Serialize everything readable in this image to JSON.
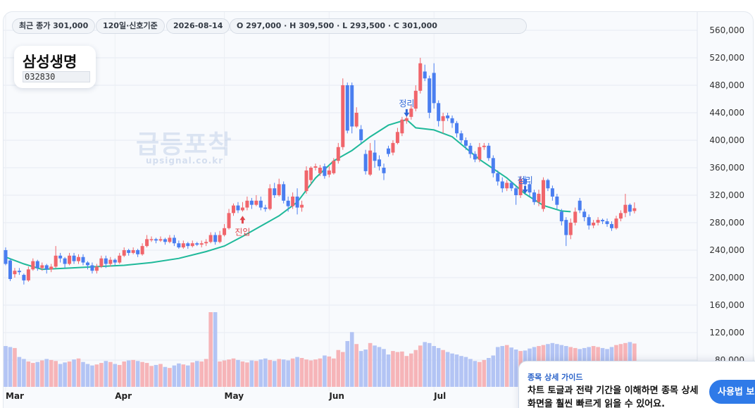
{
  "header_chips": {
    "last_close": "최근 종가 301,000",
    "period": "120일·신호기준",
    "date": "2026-08-14",
    "ohlc": "O 297,000 · H 309,500 · L 293,500 · C 301,000"
  },
  "stock": {
    "name": "삼성생명",
    "code": "032830"
  },
  "watermark": {
    "title": "급등포착",
    "subtitle": "upsignal.co.kr"
  },
  "guide": {
    "title": "종목 상세 가이드",
    "body": "차트 토글과 전략 기간을 이해하면 종목 상세 화면을 훨씬 빠르게 읽을 수 있어요.",
    "button": "사용법 보기"
  },
  "colors": {
    "up": "#f0656b",
    "down": "#4a7ef0",
    "ma": "#1fb99a",
    "vol_up": "#f6b4b8",
    "vol_down": "#b3c4f4"
  },
  "chart_data": {
    "type": "candlestick",
    "x_ticks": [
      "Mar",
      "Apr",
      "May",
      "Jun",
      "Jul"
    ],
    "y_ticks": [
      "80,000",
      "120,000",
      "160,000",
      "200,000",
      "240,000",
      "280,000",
      "320,000",
      "360,000",
      "400,000",
      "440,000",
      "480,000",
      "520,000",
      "560,000"
    ],
    "ylim": [
      70000,
      570000
    ],
    "annotations": [
      {
        "label": "진입",
        "day": 52,
        "price": 290000,
        "kind": "entry"
      },
      {
        "label": "정리",
        "day": 88,
        "price": 434000,
        "kind": "exit"
      },
      {
        "label": "정리",
        "day": 114,
        "price": 322000,
        "kind": "exit"
      }
    ],
    "ma_line": [
      [
        0,
        230000
      ],
      [
        4,
        220000
      ],
      [
        8,
        212000
      ],
      [
        14,
        214000
      ],
      [
        20,
        216000
      ],
      [
        26,
        218000
      ],
      [
        32,
        222000
      ],
      [
        38,
        228000
      ],
      [
        44,
        238000
      ],
      [
        48,
        246000
      ],
      [
        52,
        260000
      ],
      [
        56,
        275000
      ],
      [
        60,
        290000
      ],
      [
        64,
        310000
      ],
      [
        68,
        345000
      ],
      [
        72,
        370000
      ],
      [
        76,
        385000
      ],
      [
        80,
        405000
      ],
      [
        84,
        422000
      ],
      [
        88,
        430000
      ],
      [
        90,
        418000
      ],
      [
        94,
        415000
      ],
      [
        98,
        405000
      ],
      [
        104,
        372000
      ],
      [
        110,
        345000
      ],
      [
        114,
        322000
      ],
      [
        118,
        305000
      ],
      [
        122,
        297000
      ],
      [
        124,
        296000
      ]
    ],
    "candles": [
      [
        240000,
        220000,
        244000,
        218000
      ],
      [
        225000,
        198000,
        228000,
        195000
      ],
      [
        205000,
        210000,
        214000,
        200000
      ],
      [
        210000,
        208000,
        214000,
        204000
      ],
      [
        204000,
        196000,
        206000,
        190000
      ],
      [
        196000,
        212000,
        216000,
        194000
      ],
      [
        212000,
        224000,
        228000,
        210000
      ],
      [
        224000,
        214000,
        226000,
        210000
      ],
      [
        214000,
        218000,
        222000,
        210000
      ],
      [
        218000,
        212000,
        220000,
        206000
      ],
      [
        212000,
        216000,
        220000,
        208000
      ],
      [
        216000,
        232000,
        246000,
        214000
      ],
      [
        232000,
        228000,
        236000,
        222000
      ],
      [
        228000,
        220000,
        230000,
        214000
      ],
      [
        220000,
        232000,
        236000,
        218000
      ],
      [
        232000,
        224000,
        236000,
        220000
      ],
      [
        224000,
        230000,
        234000,
        220000
      ],
      [
        230000,
        222000,
        234000,
        218000
      ],
      [
        222000,
        218000,
        224000,
        212000
      ],
      [
        218000,
        210000,
        222000,
        206000
      ],
      [
        210000,
        216000,
        220000,
        206000
      ],
      [
        216000,
        228000,
        232000,
        214000
      ],
      [
        228000,
        220000,
        232000,
        214000
      ],
      [
        220000,
        226000,
        230000,
        216000
      ],
      [
        226000,
        222000,
        228000,
        218000
      ],
      [
        222000,
        232000,
        236000,
        220000
      ],
      [
        232000,
        240000,
        244000,
        230000
      ],
      [
        240000,
        236000,
        242000,
        232000
      ],
      [
        236000,
        240000,
        244000,
        234000
      ],
      [
        240000,
        234000,
        242000,
        230000
      ],
      [
        234000,
        246000,
        250000,
        232000
      ],
      [
        246000,
        256000,
        262000,
        244000
      ],
      [
        256000,
        256000,
        260000,
        252000
      ],
      [
        256000,
        254000,
        258000,
        250000
      ],
      [
        254000,
        256000,
        260000,
        252000
      ],
      [
        256000,
        252000,
        258000,
        248000
      ],
      [
        252000,
        258000,
        262000,
        250000
      ],
      [
        258000,
        250000,
        262000,
        246000
      ],
      [
        250000,
        244000,
        254000,
        242000
      ],
      [
        244000,
        250000,
        254000,
        242000
      ],
      [
        250000,
        246000,
        252000,
        242000
      ],
      [
        246000,
        250000,
        254000,
        244000
      ],
      [
        250000,
        248000,
        252000,
        246000
      ],
      [
        248000,
        250000,
        254000,
        244000
      ],
      [
        250000,
        252000,
        256000,
        246000
      ],
      [
        252000,
        262000,
        266000,
        250000
      ],
      [
        262000,
        252000,
        266000,
        248000
      ],
      [
        252000,
        262000,
        268000,
        250000
      ],
      [
        262000,
        272000,
        278000,
        260000
      ],
      [
        272000,
        294000,
        300000,
        270000
      ],
      [
        294000,
        305000,
        308000,
        290000
      ],
      [
        305000,
        298000,
        310000,
        294000
      ],
      [
        298000,
        302000,
        310000,
        296000
      ],
      [
        302000,
        312000,
        318000,
        298000
      ],
      [
        312000,
        306000,
        316000,
        300000
      ],
      [
        306000,
        312000,
        320000,
        304000
      ],
      [
        312000,
        302000,
        318000,
        298000
      ],
      [
        302000,
        300000,
        306000,
        296000
      ],
      [
        300000,
        330000,
        336000,
        298000
      ],
      [
        330000,
        320000,
        338000,
        316000
      ],
      [
        320000,
        336000,
        344000,
        318000
      ],
      [
        336000,
        312000,
        340000,
        308000
      ],
      [
        312000,
        304000,
        318000,
        296000
      ],
      [
        304000,
        318000,
        324000,
        300000
      ],
      [
        318000,
        302000,
        330000,
        292000
      ],
      [
        302000,
        306000,
        312000,
        296000
      ],
      [
        326000,
        356000,
        362000,
        322000
      ],
      [
        342000,
        360000,
        362000,
        336000
      ],
      [
        360000,
        362000,
        366000,
        356000
      ],
      [
        352000,
        360000,
        364000,
        348000
      ],
      [
        362000,
        348000,
        366000,
        344000
      ],
      [
        350000,
        356000,
        362000,
        346000
      ],
      [
        352000,
        370000,
        374000,
        350000
      ],
      [
        370000,
        390000,
        396000,
        366000
      ],
      [
        390000,
        480000,
        490000,
        386000
      ],
      [
        480000,
        414000,
        484000,
        410000
      ],
      [
        480000,
        420000,
        484000,
        410000
      ],
      [
        420000,
        440000,
        448000,
        418000
      ],
      [
        416000,
        400000,
        422000,
        396000
      ],
      [
        380000,
        355000,
        386000,
        350000
      ],
      [
        350000,
        385000,
        396000,
        348000
      ],
      [
        382000,
        370000,
        400000,
        360000
      ],
      [
        372000,
        362000,
        378000,
        356000
      ],
      [
        360000,
        352000,
        366000,
        342000
      ],
      [
        388000,
        380000,
        392000,
        376000
      ],
      [
        382000,
        396000,
        400000,
        378000
      ],
      [
        396000,
        412000,
        418000,
        394000
      ],
      [
        410000,
        430000,
        434000,
        406000
      ],
      [
        428000,
        432000,
        442000,
        424000
      ],
      [
        434000,
        446000,
        452000,
        430000
      ],
      [
        446000,
        472000,
        480000,
        442000
      ],
      [
        472000,
        512000,
        520000,
        468000
      ],
      [
        500000,
        490000,
        510000,
        486000
      ],
      [
        490000,
        440000,
        494000,
        432000
      ],
      [
        498000,
        454000,
        512000,
        446000
      ],
      [
        454000,
        428000,
        458000,
        420000
      ],
      [
        428000,
        435000,
        440000,
        410000
      ],
      [
        436000,
        432000,
        440000,
        428000
      ],
      [
        432000,
        425000,
        436000,
        418000
      ],
      [
        425000,
        410000,
        428000,
        404000
      ],
      [
        410000,
        400000,
        414000,
        396000
      ],
      [
        400000,
        392000,
        404000,
        386000
      ],
      [
        392000,
        380000,
        396000,
        374000
      ],
      [
        380000,
        372000,
        384000,
        368000
      ],
      [
        372000,
        390000,
        396000,
        368000
      ],
      [
        390000,
        392000,
        396000,
        386000
      ],
      [
        392000,
        374000,
        396000,
        370000
      ],
      [
        374000,
        352000,
        378000,
        346000
      ],
      [
        352000,
        340000,
        356000,
        334000
      ],
      [
        340000,
        330000,
        346000,
        324000
      ],
      [
        330000,
        338000,
        342000,
        326000
      ],
      [
        338000,
        330000,
        340000,
        326000
      ],
      [
        330000,
        320000,
        334000,
        306000
      ],
      [
        320000,
        344000,
        348000,
        316000
      ],
      [
        344000,
        336000,
        348000,
        330000
      ],
      [
        336000,
        324000,
        340000,
        318000
      ],
      [
        324000,
        310000,
        328000,
        306000
      ],
      [
        310000,
        322000,
        328000,
        304000
      ],
      [
        300000,
        342000,
        346000,
        296000
      ],
      [
        342000,
        330000,
        344000,
        326000
      ],
      [
        330000,
        318000,
        334000,
        312000
      ],
      [
        318000,
        306000,
        322000,
        300000
      ],
      [
        296000,
        282000,
        300000,
        276000
      ],
      [
        284000,
        262000,
        288000,
        246000
      ],
      [
        262000,
        280000,
        286000,
        256000
      ],
      [
        280000,
        296000,
        302000,
        276000
      ],
      [
        312000,
        298000,
        316000,
        294000
      ],
      [
        296000,
        288000,
        300000,
        282000
      ],
      [
        288000,
        276000,
        292000,
        270000
      ],
      [
        276000,
        280000,
        284000,
        272000
      ],
      [
        280000,
        284000,
        288000,
        276000
      ],
      [
        284000,
        282000,
        286000,
        278000
      ],
      [
        282000,
        278000,
        286000,
        274000
      ],
      [
        278000,
        272000,
        282000,
        268000
      ],
      [
        272000,
        286000,
        290000,
        270000
      ],
      [
        286000,
        294000,
        298000,
        282000
      ],
      [
        294000,
        306000,
        322000,
        288000
      ],
      [
        306000,
        296000,
        308000,
        290000
      ],
      [
        297000,
        301000,
        309500,
        293500
      ]
    ],
    "volumes": [
      82000,
      80000,
      78000,
      60000,
      56000,
      51000,
      48000,
      50000,
      53000,
      56000,
      54000,
      52000,
      46000,
      49000,
      51000,
      55000,
      57000,
      50000,
      46000,
      43000,
      45000,
      48000,
      52000,
      50000,
      46000,
      44000,
      51000,
      53000,
      54000,
      52000,
      50000,
      48000,
      42000,
      44000,
      46000,
      40000,
      38000,
      43000,
      47000,
      45000,
      43000,
      49000,
      52000,
      51000,
      56000,
      150000,
      150000,
      51000,
      53000,
      55000,
      57000,
      54000,
      51000,
      49000,
      53000,
      52000,
      55000,
      57000,
      54000,
      52000,
      56000,
      55000,
      53000,
      57000,
      60000,
      58000,
      55000,
      53000,
      55000,
      57000,
      63000,
      61000,
      57000,
      74000,
      70000,
      92000,
      110000,
      86000,
      72000,
      75000,
      88000,
      83000,
      80000,
      76000,
      65000,
      72000,
      70000,
      71000,
      62000,
      67000,
      74000,
      83000,
      90000,
      88000,
      82000,
      78000,
      74000,
      70000,
      67000,
      65000,
      62000,
      60000,
      56000,
      52000,
      50000,
      54000,
      58000,
      63000,
      80000,
      82000,
      84000,
      79000,
      75000,
      72000,
      73000,
      77000,
      80000,
      82000,
      84000,
      86000,
      88000,
      86000,
      84000,
      82000,
      80000,
      78000,
      76000,
      78000,
      80000,
      82000,
      80000,
      78000,
      76000,
      80000,
      84000,
      86000,
      88000,
      90000,
      87000
    ]
  }
}
